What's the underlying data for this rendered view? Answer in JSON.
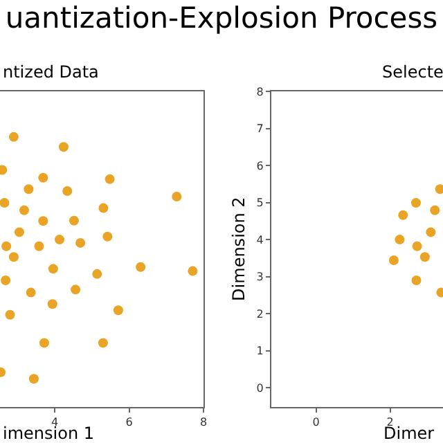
{
  "chart_data": [
    {
      "type": "scatter",
      "title": "uantization-Explosion Process",
      "subtitle": "ntized Data",
      "xlabel": "imension 1",
      "color": "#e9a426",
      "marker": "circle",
      "grid": false,
      "tick_labels": "x",
      "x": [
        2.9,
        4.24,
        2.59,
        3.69,
        5.48,
        3.3,
        4.34,
        7.28,
        2.65,
        3.18,
        5.31,
        3.69,
        4.52,
        3.05,
        4.13,
        5.42,
        2.7,
        3.58,
        4.69,
        2.9,
        3.96,
        6.31,
        5.14,
        7.71,
        2.68,
        3.36,
        4.56,
        3.94,
        2.8,
        5.71,
        3.72,
        5.3,
        2.55,
        3.44
      ],
      "values": [
        6.77,
        6.5,
        5.88,
        5.67,
        5.63,
        5.36,
        5.31,
        5.16,
        4.99,
        4.79,
        4.85,
        4.5,
        4.51,
        4.2,
        4.0,
        4.08,
        3.82,
        3.82,
        3.91,
        3.53,
        3.21,
        3.26,
        3.07,
        3.15,
        2.9,
        2.57,
        2.65,
        2.26,
        1.97,
        2.09,
        1.21,
        1.21,
        0.42,
        0.24
      ],
      "xlim": [
        2.53,
        8
      ],
      "xticks": [
        4,
        6,
        8
      ],
      "ylim": [
        -0.52,
        8
      ]
    },
    {
      "type": "scatter",
      "title": "Selecte",
      "xlabel": "Dimer",
      "ylabel": "Dimension 2",
      "color": "#e9a426",
      "marker": "circle",
      "grid": false,
      "x": [
        3.35,
        2.7,
        3.21,
        2.35,
        3.1,
        2.26,
        2.73,
        2.94,
        2.1,
        2.71,
        3.38
      ],
      "values": [
        5.36,
        4.99,
        4.79,
        4.66,
        4.2,
        4.0,
        3.82,
        3.53,
        3.44,
        2.9,
        2.57
      ],
      "xlim": [
        -1.21,
        3.43
      ],
      "xticks": [
        0,
        2
      ],
      "ylim": [
        -0.52,
        8
      ],
      "yticks": [
        0,
        1,
        2,
        3,
        4,
        5,
        6,
        7,
        8
      ]
    }
  ]
}
